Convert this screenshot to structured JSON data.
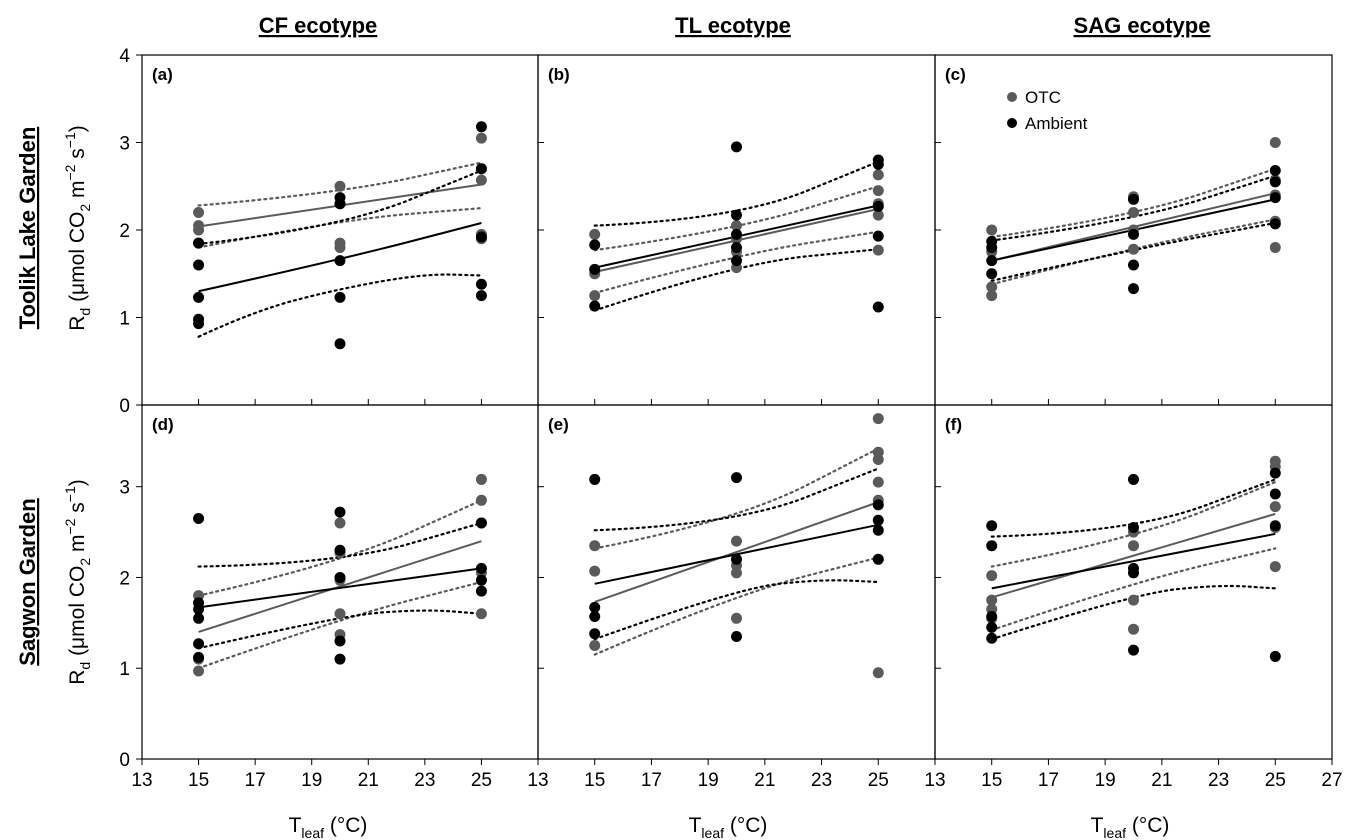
{
  "figure": {
    "column_titles": [
      "CF ecotype",
      "TL ecotype",
      "SAG ecotype"
    ],
    "row_titles": [
      "Toolik Lake Garden",
      "Sagwon Garden"
    ],
    "y_axis": {
      "main": "R",
      "sub": "d",
      "unit_open": " (μmol CO",
      "unit_sub": "2",
      "unit_mid": " m",
      "unit_sup1": "−2",
      "unit_s": " s",
      "unit_sup2": "−1",
      "unit_close": ")"
    },
    "x_axis": {
      "main": "T",
      "sub": "leaf",
      "unit": " (°C)"
    },
    "legend": [
      {
        "label": "OTC",
        "color": "#5a5a5a"
      },
      {
        "label": "Ambient",
        "color": "#000000"
      }
    ]
  },
  "chart_data": {
    "type": "scatter",
    "x_ticks": [
      13,
      15,
      17,
      19,
      21,
      23,
      25
    ],
    "x_ticks_last": [
      13,
      15,
      17,
      19,
      21,
      23,
      25,
      27
    ],
    "y_ticks": [
      0,
      1,
      2,
      3,
      4
    ],
    "y_ticks_bottom": [
      0,
      1,
      2,
      3
    ],
    "xlim": [
      13,
      27
    ],
    "ylim": [
      0,
      4
    ],
    "ylim_bottom": [
      0,
      3.9
    ],
    "colors": {
      "OTC": "#5a5a5a",
      "Ambient": "#000000"
    },
    "panels": [
      {
        "label": "(a)",
        "OTC": {
          "x": [
            15,
            15,
            15,
            15,
            20,
            20,
            20,
            20,
            25,
            25,
            25,
            25,
            25
          ],
          "y": [
            2.2,
            2.05,
            2.0,
            1.85,
            2.5,
            2.3,
            1.85,
            1.8,
            3.05,
            2.7,
            2.57,
            1.95,
            1.9
          ],
          "fit": [
            [
              15,
              2.04
            ],
            [
              25,
              2.52
            ]
          ],
          "ci_upper": [
            [
              15,
              2.28
            ],
            [
              20,
              2.42
            ],
            [
              25,
              2.77
            ]
          ],
          "ci_lower": [
            [
              15,
              1.8
            ],
            [
              20,
              2.12
            ],
            [
              25,
              2.25
            ]
          ]
        },
        "Ambient": {
          "x": [
            15,
            15,
            15,
            15,
            15,
            20,
            20,
            20,
            20,
            20,
            25,
            25,
            25,
            25,
            25
          ],
          "y": [
            1.85,
            1.6,
            1.23,
            0.98,
            0.93,
            2.37,
            2.3,
            1.65,
            1.23,
            0.7,
            3.18,
            2.7,
            1.92,
            1.38,
            1.25
          ],
          "fit": [
            [
              15,
              1.3
            ],
            [
              20,
              1.66
            ],
            [
              25,
              2.08
            ]
          ],
          "ci_upper": [
            [
              15,
              1.84
            ],
            [
              20,
              2.02
            ],
            [
              25,
              2.68
            ]
          ],
          "ci_lower": [
            [
              15,
              0.78
            ],
            [
              17,
              1.08
            ],
            [
              20,
              1.33
            ],
            [
              23,
              1.5
            ],
            [
              25,
              1.48
            ]
          ]
        }
      },
      {
        "label": "(b)",
        "OTC": {
          "x": [
            15,
            15,
            15,
            20,
            20,
            20,
            20,
            25,
            25,
            25,
            25,
            25
          ],
          "y": [
            1.95,
            1.5,
            1.25,
            2.05,
            1.9,
            1.75,
            1.57,
            2.63,
            2.45,
            2.3,
            2.17,
            1.77
          ],
          "fit": [
            [
              15,
              1.52
            ],
            [
              25,
              2.24
            ]
          ],
          "ci_upper": [
            [
              15,
              1.77
            ],
            [
              20,
              2.0
            ],
            [
              25,
              2.5
            ]
          ],
          "ci_lower": [
            [
              15,
              1.28
            ],
            [
              20,
              1.72
            ],
            [
              25,
              1.98
            ]
          ]
        },
        "Ambient": {
          "x": [
            15,
            15,
            15,
            20,
            20,
            20,
            20,
            20,
            25,
            25,
            25,
            25,
            25
          ],
          "y": [
            1.83,
            1.55,
            1.13,
            2.95,
            2.17,
            1.95,
            1.8,
            1.65,
            2.8,
            2.75,
            2.27,
            1.93,
            1.12
          ],
          "fit": [
            [
              15,
              1.57
            ],
            [
              25,
              2.28
            ]
          ],
          "ci_upper": [
            [
              15,
              2.05
            ],
            [
              20,
              2.12
            ],
            [
              25,
              2.78
            ]
          ],
          "ci_lower": [
            [
              15,
              1.08
            ],
            [
              20,
              1.62
            ],
            [
              25,
              1.78
            ]
          ]
        }
      },
      {
        "label": "(c)",
        "OTC": {
          "x": [
            15,
            15,
            15,
            15,
            20,
            20,
            20,
            20,
            25,
            25,
            25,
            25,
            25
          ],
          "y": [
            2.0,
            1.75,
            1.35,
            1.25,
            2.38,
            2.2,
            2.0,
            1.78,
            3.0,
            2.57,
            2.4,
            2.1,
            1.8
          ],
          "fit": [
            [
              15,
              1.65
            ],
            [
              25,
              2.42
            ]
          ],
          "ci_upper": [
            [
              15,
              1.92
            ],
            [
              20,
              2.15
            ],
            [
              25,
              2.7
            ]
          ],
          "ci_lower": [
            [
              15,
              1.38
            ],
            [
              20,
              1.8
            ],
            [
              25,
              2.12
            ]
          ]
        },
        "Ambient": {
          "x": [
            15,
            15,
            15,
            15,
            20,
            20,
            20,
            20,
            25,
            25,
            25,
            25
          ],
          "y": [
            1.87,
            1.8,
            1.65,
            1.5,
            2.35,
            1.95,
            1.6,
            1.33,
            2.68,
            2.55,
            2.37,
            2.07
          ],
          "fit": [
            [
              15,
              1.65
            ],
            [
              25,
              2.35
            ]
          ],
          "ci_upper": [
            [
              15,
              1.88
            ],
            [
              20,
              2.1
            ],
            [
              25,
              2.62
            ]
          ],
          "ci_lower": [
            [
              15,
              1.42
            ],
            [
              20,
              1.78
            ],
            [
              25,
              2.08
            ]
          ]
        }
      },
      {
        "label": "(d)",
        "OTC": {
          "x": [
            15,
            15,
            15,
            20,
            20,
            20,
            20,
            20,
            25,
            25,
            25,
            25,
            25
          ],
          "y": [
            1.8,
            1.1,
            0.97,
            2.6,
            2.27,
            1.97,
            1.6,
            1.37,
            3.08,
            2.85,
            2.6,
            2.05,
            1.6
          ],
          "fit": [
            [
              15,
              1.4
            ],
            [
              25,
              2.4
            ]
          ],
          "ci_upper": [
            [
              15,
              1.8
            ],
            [
              20,
              2.15
            ],
            [
              25,
              2.85
            ]
          ],
          "ci_lower": [
            [
              15,
              1.0
            ],
            [
              20,
              1.55
            ],
            [
              25,
              1.95
            ]
          ]
        },
        "Ambient": {
          "x": [
            15,
            15,
            15,
            15,
            15,
            15,
            20,
            20,
            20,
            20,
            20,
            25,
            25,
            25,
            25
          ],
          "y": [
            2.65,
            1.72,
            1.65,
            1.55,
            1.27,
            1.12,
            2.72,
            2.3,
            2.0,
            1.3,
            1.1,
            2.6,
            2.1,
            1.97,
            1.85
          ],
          "fit": [
            [
              15,
              1.67
            ],
            [
              25,
              2.1
            ]
          ],
          "ci_upper": [
            [
              15,
              2.12
            ],
            [
              20,
              2.15
            ],
            [
              25,
              2.6
            ]
          ],
          "ci_lower": [
            [
              15,
              1.22
            ],
            [
              20,
              1.58
            ],
            [
              23,
              1.65
            ],
            [
              25,
              1.6
            ]
          ]
        }
      },
      {
        "label": "(e)",
        "OTC": {
          "x": [
            15,
            15,
            15,
            20,
            20,
            20,
            20,
            25,
            25,
            25,
            25,
            25,
            25
          ],
          "y": [
            2.35,
            2.07,
            1.25,
            2.4,
            2.05,
            1.55,
            2.13,
            3.75,
            3.38,
            3.3,
            3.05,
            2.85,
            0.95
          ],
          "fit": [
            [
              15,
              1.73
            ],
            [
              25,
              2.83
            ]
          ],
          "ci_upper": [
            [
              15,
              2.32
            ],
            [
              20,
              2.62
            ],
            [
              25,
              3.42
            ]
          ],
          "ci_lower": [
            [
              15,
              1.15
            ],
            [
              20,
              1.82
            ],
            [
              25,
              2.22
            ]
          ]
        },
        "Ambient": {
          "x": [
            15,
            15,
            15,
            15,
            20,
            20,
            20,
            25,
            25,
            25,
            25
          ],
          "y": [
            3.08,
            1.67,
            1.57,
            1.38,
            3.1,
            2.2,
            1.35,
            2.8,
            2.52,
            2.2,
            2.63
          ],
          "fit": [
            [
              15,
              1.93
            ],
            [
              25,
              2.58
            ]
          ],
          "ci_upper": [
            [
              15,
              2.52
            ],
            [
              20,
              2.58
            ],
            [
              25,
              3.2
            ]
          ],
          "ci_lower": [
            [
              15,
              1.32
            ],
            [
              20,
              1.88
            ],
            [
              23,
              1.98
            ],
            [
              25,
              1.95
            ]
          ]
        }
      },
      {
        "label": "(f)",
        "OTC": {
          "x": [
            15,
            15,
            15,
            15,
            20,
            20,
            20,
            20,
            25,
            25,
            25,
            25,
            25
          ],
          "y": [
            2.02,
            1.75,
            1.65,
            1.55,
            2.5,
            2.35,
            1.75,
            1.43,
            3.28,
            3.22,
            2.78,
            2.55,
            2.12
          ],
          "fit": [
            [
              15,
              1.78
            ],
            [
              25,
              2.7
            ]
          ],
          "ci_upper": [
            [
              15,
              2.12
            ],
            [
              20,
              2.42
            ],
            [
              25,
              3.05
            ]
          ],
          "ci_lower": [
            [
              15,
              1.42
            ],
            [
              20,
              1.95
            ],
            [
              25,
              2.32
            ]
          ]
        },
        "Ambient": {
          "x": [
            15,
            15,
            15,
            15,
            15,
            20,
            20,
            20,
            20,
            20,
            25,
            25,
            25,
            25
          ],
          "y": [
            2.57,
            2.35,
            1.57,
            1.45,
            1.33,
            3.08,
            2.55,
            2.1,
            2.05,
            1.2,
            3.15,
            2.92,
            2.57,
            1.13
          ],
          "fit": [
            [
              15,
              1.88
            ],
            [
              25,
              2.48
            ]
          ],
          "ci_upper": [
            [
              15,
              2.45
            ],
            [
              20,
              2.5
            ],
            [
              25,
              3.08
            ]
          ],
          "ci_lower": [
            [
              15,
              1.32
            ],
            [
              20,
              1.82
            ],
            [
              23,
              1.92
            ],
            [
              25,
              1.88
            ]
          ]
        }
      }
    ]
  }
}
